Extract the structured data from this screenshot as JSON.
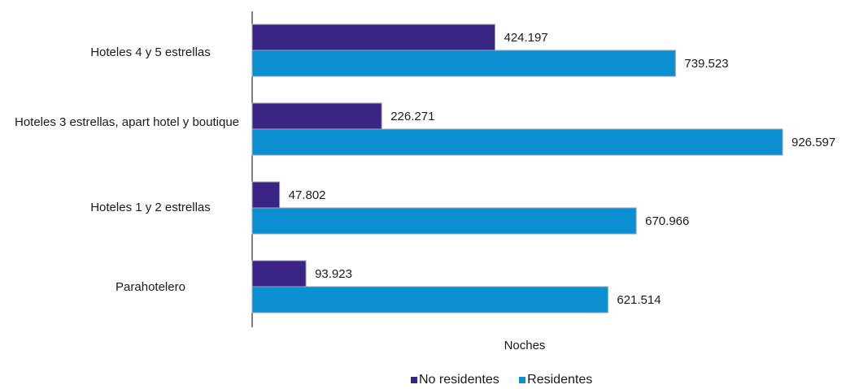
{
  "chart_data": {
    "type": "bar",
    "orientation": "horizontal",
    "categories": [
      "Hoteles 4 y 5 estrellas",
      "Hoteles 3 estrellas, apart hotel y boutique",
      "Hoteles 1 y 2 estrellas",
      "Parahotelero"
    ],
    "series": [
      {
        "name": "No residentes",
        "color": "#3a2584",
        "values": [
          424197,
          226271,
          47802,
          93923
        ],
        "labels": [
          "424.197",
          "226.271",
          "47.802",
          "93.923"
        ]
      },
      {
        "name": "Residentes",
        "color": "#0a8fd0",
        "values": [
          739523,
          926597,
          670966,
          621514
        ],
        "labels": [
          "739.523",
          "926.597",
          "670.966",
          "621.514"
        ]
      }
    ],
    "xlabel": "Noches",
    "ylabel": "",
    "xlim": [
      0,
      1000000
    ],
    "grid": false,
    "legend": "bottom"
  }
}
